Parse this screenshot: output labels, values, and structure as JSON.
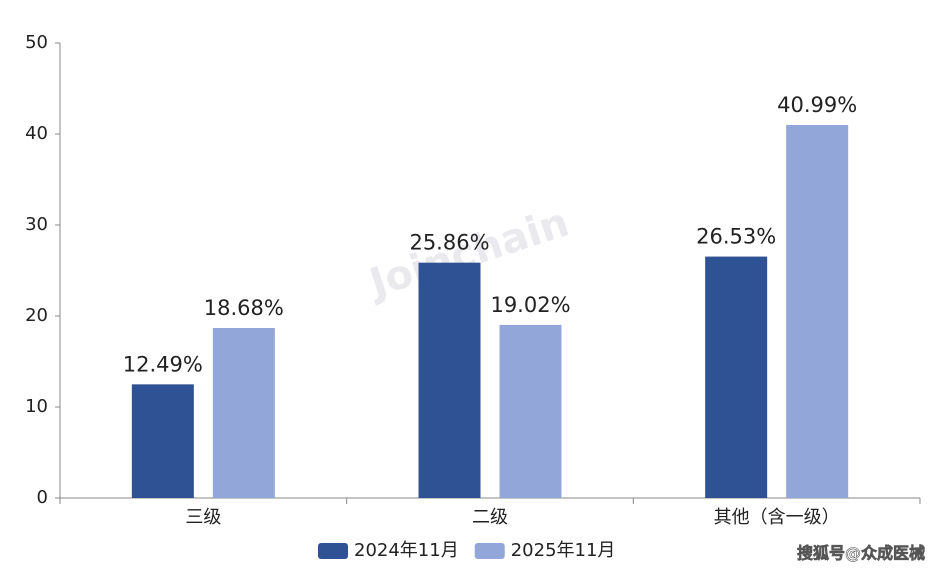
{
  "chart_data": {
    "type": "bar",
    "categories": [
      "三级",
      "二级",
      "其他（含一级）"
    ],
    "series": [
      {
        "name": "2024年11月",
        "color": "#2e5293",
        "values": [
          12.49,
          25.86,
          26.53
        ],
        "value_labels": [
          "12.49%",
          "25.86%",
          "26.53%"
        ]
      },
      {
        "name": "2025年11月",
        "color": "#93a6d9",
        "values": [
          18.68,
          19.02,
          40.99
        ],
        "value_labels": [
          "18.68%",
          "19.02%",
          "40.99%"
        ]
      }
    ],
    "ylim": [
      0,
      50
    ],
    "yticks": [
      0,
      10,
      20,
      30,
      40,
      50
    ],
    "grid": false,
    "legend": "bottom",
    "watermark": "Joinchain",
    "credit": "搜狐号@众成医械"
  }
}
